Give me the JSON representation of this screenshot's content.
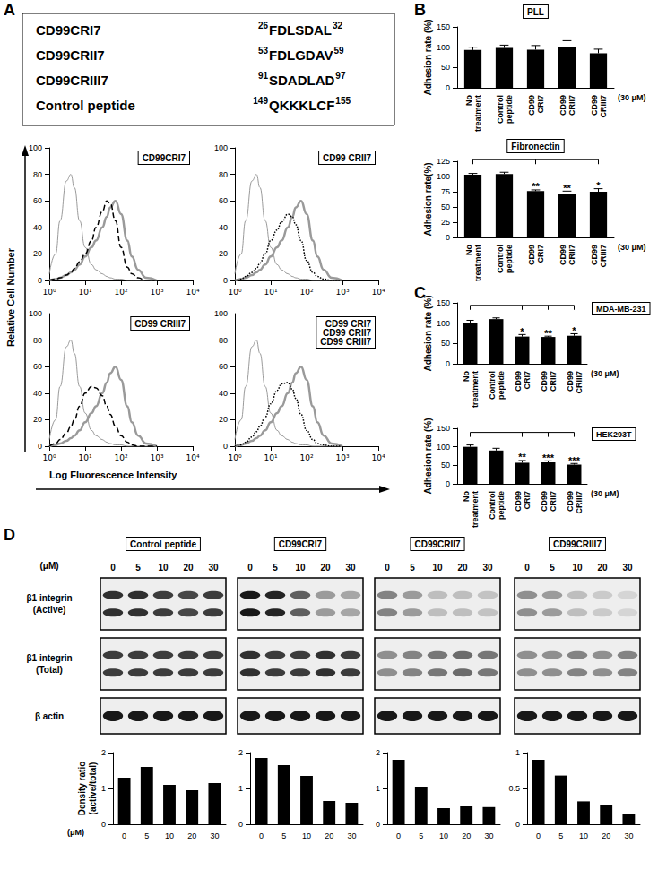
{
  "panels": [
    "A",
    "B",
    "C",
    "D"
  ],
  "peptide_table": [
    {
      "name": "CD99CRI7",
      "start": 26,
      "sequence": "FDLSDAL",
      "end": 32
    },
    {
      "name": "CD99CRII7",
      "start": 53,
      "sequence": "FDLGDAV",
      "end": 59
    },
    {
      "name": "CD99CRIII7",
      "start": 91,
      "sequence": "SDADLAD",
      "end": 97
    },
    {
      "name": "Control peptide",
      "start": 149,
      "sequence": "QKKKLCF",
      "end": 155
    }
  ],
  "histogram_axes": {
    "ylabel": "Relative Cell Number",
    "xlabel": "Log Fluorescence Intensity"
  },
  "chart_data": [
    {
      "type": "line",
      "title": [
        "CD99CRI7"
      ],
      "log": "x",
      "x": [
        1,
        1.5,
        2,
        3,
        4,
        5,
        7,
        10,
        15,
        20,
        30,
        40,
        50,
        70,
        100,
        150,
        200,
        300,
        500,
        1000
      ],
      "series": [
        {
          "color": "#9a9a9a",
          "line_style": "solid-thin",
          "values": [
            5,
            20,
            45,
            75,
            80,
            70,
            45,
            25,
            12,
            8,
            5,
            3,
            2,
            1,
            1,
            0,
            0,
            0,
            0,
            0
          ]
        },
        {
          "color": "#9a9a9a",
          "line_style": "solid-thick",
          "values": [
            0,
            1,
            2,
            4,
            6,
            8,
            12,
            18,
            25,
            30,
            40,
            48,
            55,
            60,
            50,
            30,
            18,
            8,
            2,
            0
          ]
        },
        {
          "color": "#000000",
          "line_style": "dashed",
          "values": [
            0,
            1,
            2,
            4,
            6,
            9,
            14,
            20,
            30,
            40,
            52,
            60,
            58,
            45,
            25,
            10,
            5,
            2,
            0,
            0
          ]
        }
      ],
      "xlim": [
        1,
        10000
      ],
      "xticks": [
        {
          "value": 1,
          "label": "10⁰"
        },
        {
          "value": 10,
          "label": "10¹"
        },
        {
          "value": 100,
          "label": "10²"
        },
        {
          "value": 1000,
          "label": "10³"
        },
        {
          "value": 10000,
          "label": "10⁴"
        }
      ],
      "ylim": [
        0,
        100
      ],
      "yticks": [
        0,
        20,
        40,
        60,
        80,
        100
      ]
    },
    {
      "type": "line",
      "title": [
        "CD99 CRII7"
      ],
      "log": "x",
      "x": [
        1,
        1.5,
        2,
        3,
        4,
        5,
        7,
        10,
        15,
        20,
        30,
        40,
        50,
        70,
        100,
        150,
        200,
        300,
        500,
        1000
      ],
      "series": [
        {
          "color": "#9a9a9a",
          "line_style": "solid-thin",
          "values": [
            5,
            20,
            45,
            75,
            80,
            70,
            45,
            25,
            12,
            8,
            5,
            3,
            2,
            1,
            1,
            0,
            0,
            0,
            0,
            0
          ]
        },
        {
          "color": "#9a9a9a",
          "line_style": "solid-thick",
          "values": [
            0,
            1,
            2,
            4,
            6,
            8,
            12,
            18,
            25,
            30,
            40,
            48,
            55,
            60,
            50,
            30,
            18,
            8,
            2,
            0
          ]
        },
        {
          "color": "#000000",
          "line_style": "dotted",
          "values": [
            0,
            1,
            3,
            6,
            9,
            13,
            20,
            30,
            38,
            44,
            50,
            48,
            42,
            30,
            15,
            6,
            3,
            1,
            0,
            0
          ]
        }
      ],
      "xlim": [
        1,
        10000
      ],
      "xticks": [
        {
          "value": 1,
          "label": "10⁰"
        },
        {
          "value": 10,
          "label": "10¹"
        },
        {
          "value": 100,
          "label": "10²"
        },
        {
          "value": 1000,
          "label": "10³"
        },
        {
          "value": 10000,
          "label": "10⁴"
        }
      ],
      "ylim": [
        0,
        100
      ],
      "yticks": [
        0,
        20,
        40,
        60,
        80,
        100
      ]
    },
    {
      "type": "line",
      "title": [
        "CD99 CRIII7"
      ],
      "log": "x",
      "x": [
        1,
        1.5,
        2,
        3,
        4,
        5,
        7,
        10,
        15,
        20,
        30,
        40,
        50,
        70,
        100,
        150,
        200,
        300,
        500,
        1000
      ],
      "series": [
        {
          "color": "#9a9a9a",
          "line_style": "solid-thin",
          "values": [
            5,
            20,
            45,
            75,
            80,
            70,
            45,
            25,
            12,
            8,
            5,
            3,
            2,
            1,
            1,
            0,
            0,
            0,
            0,
            0
          ]
        },
        {
          "color": "#9a9a9a",
          "line_style": "solid-thick",
          "values": [
            0,
            1,
            2,
            4,
            6,
            8,
            12,
            18,
            25,
            30,
            40,
            48,
            55,
            60,
            50,
            30,
            18,
            8,
            2,
            0
          ]
        },
        {
          "color": "#000000",
          "line_style": "dashed",
          "values": [
            0,
            2,
            5,
            10,
            15,
            20,
            30,
            40,
            45,
            44,
            38,
            30,
            24,
            15,
            8,
            3,
            1,
            0,
            0,
            0
          ]
        }
      ],
      "xlim": [
        1,
        10000
      ],
      "xticks": [
        {
          "value": 1,
          "label": "10⁰"
        },
        {
          "value": 10,
          "label": "10¹"
        },
        {
          "value": 100,
          "label": "10²"
        },
        {
          "value": 1000,
          "label": "10³"
        },
        {
          "value": 10000,
          "label": "10⁴"
        }
      ],
      "ylim": [
        0,
        100
      ],
      "yticks": [
        0,
        20,
        40,
        60,
        80,
        100
      ]
    },
    {
      "type": "line",
      "title": [
        "CD99 CRI7",
        "CD99 CRII7",
        "CD99 CRIII7"
      ],
      "log": "x",
      "x": [
        1,
        1.5,
        2,
        3,
        4,
        5,
        7,
        10,
        15,
        20,
        30,
        40,
        50,
        70,
        100,
        150,
        200,
        300,
        500,
        1000
      ],
      "series": [
        {
          "color": "#9a9a9a",
          "line_style": "solid-thin",
          "values": [
            5,
            20,
            45,
            75,
            80,
            70,
            45,
            25,
            12,
            8,
            5,
            3,
            2,
            1,
            1,
            0,
            0,
            0,
            0,
            0
          ]
        },
        {
          "color": "#9a9a9a",
          "line_style": "solid-thick",
          "values": [
            0,
            1,
            2,
            4,
            6,
            8,
            12,
            18,
            25,
            30,
            40,
            48,
            55,
            60,
            50,
            30,
            18,
            8,
            2,
            0
          ]
        },
        {
          "color": "#000000",
          "line_style": "dotted",
          "values": [
            0,
            1,
            3,
            7,
            11,
            15,
            22,
            32,
            42,
            47,
            48,
            43,
            36,
            24,
            12,
            5,
            2,
            1,
            0,
            0
          ]
        }
      ],
      "xlim": [
        1,
        10000
      ],
      "xticks": [
        {
          "value": 1,
          "label": "10⁰"
        },
        {
          "value": 10,
          "label": "10¹"
        },
        {
          "value": 100,
          "label": "10²"
        },
        {
          "value": 1000,
          "label": "10³"
        },
        {
          "value": 10000,
          "label": "10⁴"
        }
      ],
      "ylim": [
        0,
        100
      ],
      "yticks": [
        0,
        20,
        40,
        60,
        80,
        100
      ]
    },
    {
      "type": "bar",
      "title": "PLL",
      "ylabel": "Adhesion rate (%)",
      "annotation": "(30 μM)",
      "color": "#000000",
      "categories": [
        "No treatment",
        "Control peptide",
        "CD99 CRI7",
        "CD99 CRII7",
        "CD99 CRIII7"
      ],
      "values": [
        93,
        98,
        94,
        101,
        85
      ],
      "errors": [
        7,
        7,
        10,
        15,
        10
      ],
      "ylim": [
        0,
        150
      ],
      "yticks": [
        0,
        50,
        100,
        150
      ]
    },
    {
      "type": "bar",
      "title": "Fibronectin",
      "ylabel": "Adhesion rate(%)",
      "annotation": "(30 μM)",
      "color": "#000000",
      "categories": [
        "No treatment",
        "Control peptide",
        "CD99 CRI7",
        "CD99 CRII7",
        "CD99 CRIII7"
      ],
      "values": [
        103,
        104,
        76,
        72,
        75
      ],
      "errors": [
        2,
        3,
        2,
        4,
        5
      ],
      "significance": [
        null,
        null,
        "**",
        "**",
        "*"
      ],
      "ylim": [
        0,
        125
      ],
      "yticks": [
        0,
        25,
        50,
        75,
        100,
        125
      ]
    },
    {
      "type": "bar",
      "title": "MDA-MB-231",
      "ylabel": "Adhesion rate (%)",
      "annotation": "(30 μM)",
      "color": "#000000",
      "categories": [
        "No treatment",
        "Control peptide",
        "CD99 CRI7",
        "CD99 CRII7",
        "CD99 CRIII7"
      ],
      "values": [
        100,
        110,
        67,
        66,
        69
      ],
      "errors": [
        7,
        3,
        5,
        2,
        5
      ],
      "significance": [
        null,
        null,
        "*",
        "**",
        "*"
      ],
      "ylim": [
        0,
        150
      ],
      "yticks": [
        0,
        50,
        100,
        150
      ]
    },
    {
      "type": "bar",
      "title": "HEK293T",
      "ylabel": "Adhesion rate (%)",
      "annotation": "(30 μM)",
      "color": "#000000",
      "categories": [
        "No treatment",
        "Control peptide",
        "CD99 CRI7",
        "CD99 CRII7",
        "CD99 CRIII7"
      ],
      "values": [
        100,
        90,
        57,
        58,
        52
      ],
      "errors": [
        5,
        6,
        6,
        4,
        3
      ],
      "significance": [
        null,
        null,
        "**",
        "***",
        "***"
      ],
      "ylim": [
        0,
        150
      ],
      "yticks": [
        0,
        50,
        100,
        150
      ]
    },
    {
      "type": "bar",
      "ylabel": [
        "Density ratio",
        "(active/total)"
      ],
      "annotation": "(μM)",
      "color": "#000000",
      "categories": [
        0,
        5,
        10,
        20,
        30
      ],
      "values": [
        1.3,
        1.6,
        1.1,
        0.95,
        1.15
      ],
      "ylim": [
        0,
        2
      ],
      "yticks": [
        0,
        1,
        2
      ]
    },
    {
      "type": "bar",
      "color": "#000000",
      "categories": [
        0,
        5,
        10,
        20,
        30
      ],
      "values": [
        1.85,
        1.65,
        1.35,
        0.65,
        0.6
      ],
      "ylim": [
        0,
        2
      ],
      "yticks": [
        0,
        1,
        2
      ]
    },
    {
      "type": "bar",
      "color": "#000000",
      "categories": [
        0,
        5,
        10,
        20,
        30
      ],
      "values": [
        1.8,
        1.05,
        0.45,
        0.5,
        0.48
      ],
      "ylim": [
        0,
        2
      ],
      "yticks": [
        0,
        1,
        2
      ]
    },
    {
      "type": "bar",
      "color": "#000000",
      "categories": [
        0,
        5,
        10,
        20,
        30
      ],
      "values": [
        0.9,
        0.68,
        0.32,
        0.27,
        0.15
      ],
      "ylim": [
        0,
        1
      ],
      "yticks": [
        0,
        0.5,
        1
      ]
    }
  ],
  "blots": {
    "dose_unit": "(μM)",
    "rows": [
      [
        "β1 integrin",
        "(Active)"
      ],
      [
        "β1 integrin",
        "(Total)"
      ],
      [
        "β actin"
      ]
    ],
    "panels": [
      {
        "title": "Control peptide",
        "doses": [
          0,
          5,
          10,
          20,
          30
        ],
        "active": [
          0.8,
          0.8,
          0.75,
          0.7,
          0.75
        ],
        "total": [
          0.75,
          0.75,
          0.75,
          0.75,
          0.75
        ],
        "actin": [
          0.9,
          0.9,
          0.9,
          0.9,
          0.9
        ]
      },
      {
        "title": "CD99CRI7",
        "doses": [
          0,
          5,
          10,
          20,
          30
        ],
        "active": [
          0.9,
          0.85,
          0.6,
          0.35,
          0.3
        ],
        "total": [
          0.8,
          0.75,
          0.75,
          0.8,
          0.75
        ],
        "actin": [
          0.9,
          0.9,
          0.9,
          0.9,
          0.9
        ]
      },
      {
        "title": "CD99CRII7",
        "doses": [
          0,
          5,
          10,
          20,
          30
        ],
        "active": [
          0.45,
          0.35,
          0.2,
          0.2,
          0.18
        ],
        "total": [
          0.4,
          0.45,
          0.5,
          0.55,
          0.5
        ],
        "actin": [
          0.9,
          0.9,
          0.9,
          0.9,
          0.9
        ]
      },
      {
        "title": "CD99CRIII7",
        "doses": [
          0,
          5,
          10,
          20,
          30
        ],
        "active": [
          0.4,
          0.35,
          0.2,
          0.15,
          0.1
        ],
        "total": [
          0.4,
          0.4,
          0.45,
          0.4,
          0.45
        ],
        "actin": [
          0.9,
          0.9,
          0.9,
          0.9,
          0.9
        ]
      }
    ]
  }
}
